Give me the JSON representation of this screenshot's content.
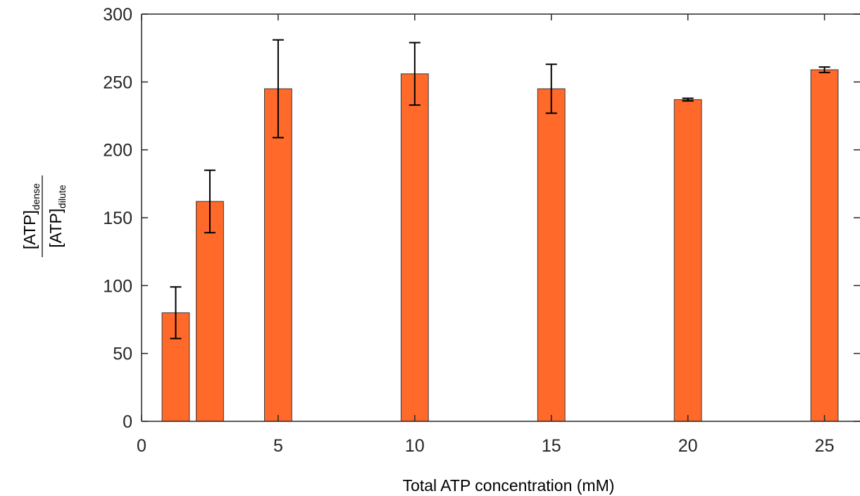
{
  "chart_data": {
    "type": "bar",
    "title": "",
    "xlabel": "Total ATP concentration (mM)",
    "ylabel": {
      "numerator": {
        "base": "[ATP]",
        "subscript": "dense"
      },
      "denominator": {
        "base": "[ATP]",
        "subscript": "dilute"
      }
    },
    "x": [
      1.25,
      2.5,
      5,
      10,
      15,
      20,
      25
    ],
    "values": [
      80,
      162,
      245,
      256,
      245,
      237,
      259
    ],
    "error": [
      19,
      23,
      36,
      23,
      18,
      1,
      2
    ],
    "xlim": [
      0,
      26.3
    ],
    "ylim": [
      0,
      300
    ],
    "xticks": [
      "0",
      "5",
      "10",
      "15",
      "20",
      "25"
    ],
    "yticks": [
      "0",
      "50",
      "100",
      "150",
      "200",
      "250",
      "300"
    ],
    "bar_color": "#ff6929",
    "grid": false,
    "legend": "none"
  }
}
